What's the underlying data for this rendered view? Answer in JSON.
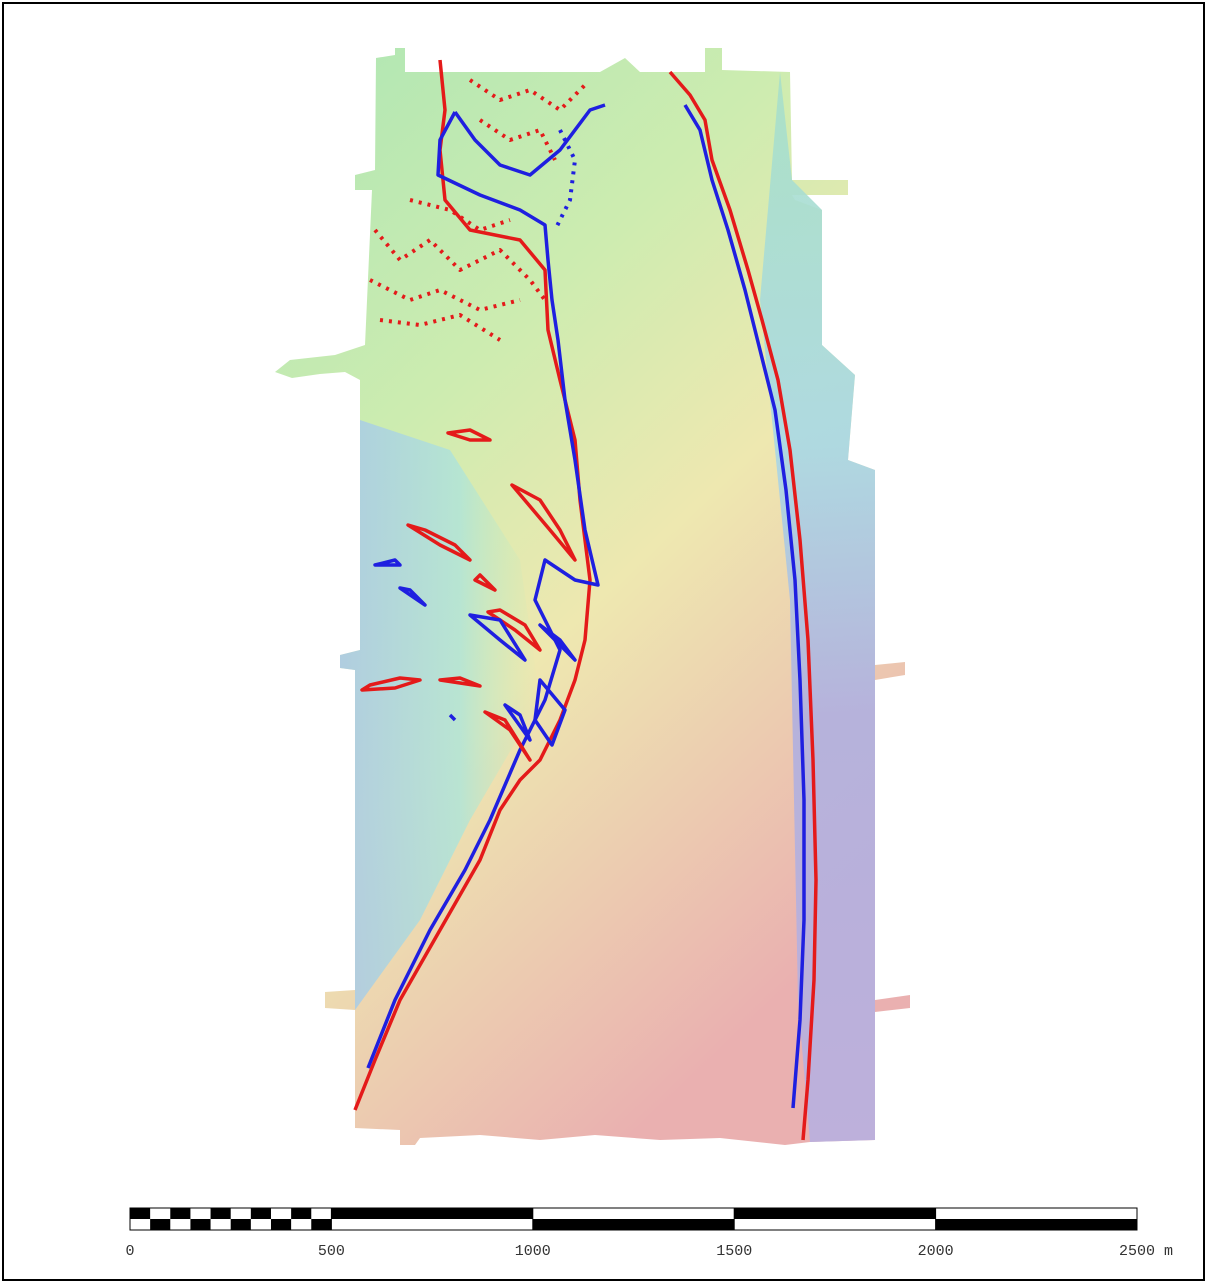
{
  "scale_bar": {
    "ticks": [
      0,
      500,
      1000,
      1500,
      2000,
      {
        "value": 2500,
        "label": "2500 m"
      }
    ]
  }
}
